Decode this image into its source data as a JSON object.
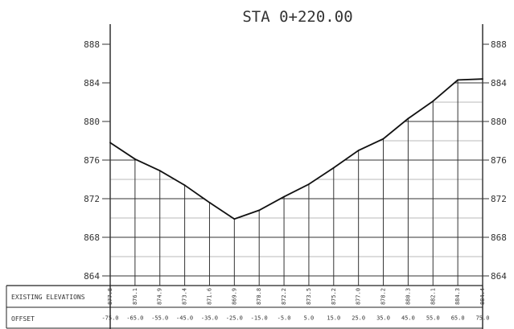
{
  "chart_data": {
    "type": "line",
    "title": "STA  0+220.00",
    "y_tick_labels_left": [
      "888",
      "884",
      "880",
      "876",
      "872",
      "868",
      "864"
    ],
    "y_tick_labels_right": [
      "888",
      "884",
      "880",
      "876",
      "872",
      "868",
      "864"
    ],
    "ylim": [
      864,
      888
    ],
    "xlim": [
      -75,
      75
    ],
    "series": [
      {
        "x": [
          -75,
          -65,
          -55,
          -45,
          -35,
          -25,
          -15,
          -5,
          5,
          15,
          25,
          35,
          45,
          55,
          65,
          75
        ],
        "values": [
          877.8,
          876.1,
          874.9,
          873.4,
          871.6,
          869.9,
          870.8,
          872.2,
          873.5,
          875.2,
          877.0,
          878.2,
          880.3,
          882.1,
          884.3,
          884.4
        ]
      }
    ],
    "table_rows": [
      {
        "label": "EXISTING ELEVATIONS",
        "values": [
          "877.8",
          "876.1",
          "874.9",
          "873.4",
          "871.6",
          "869.9",
          "870.8",
          "872.2",
          "873.5",
          "875.2",
          "877.0",
          "878.2",
          "880.3",
          "882.1",
          "884.3",
          "884.4"
        ]
      },
      {
        "label": "OFFSET",
        "values": [
          "-75.0",
          "-65.0",
          "-55.0",
          "-45.0",
          "-35.0",
          "-25.0",
          "-15.0",
          "-5.0",
          "5.0",
          "15.0",
          "25.0",
          "35.0",
          "45.0",
          "55.0",
          "65.0",
          "75.0"
        ]
      }
    ]
  }
}
